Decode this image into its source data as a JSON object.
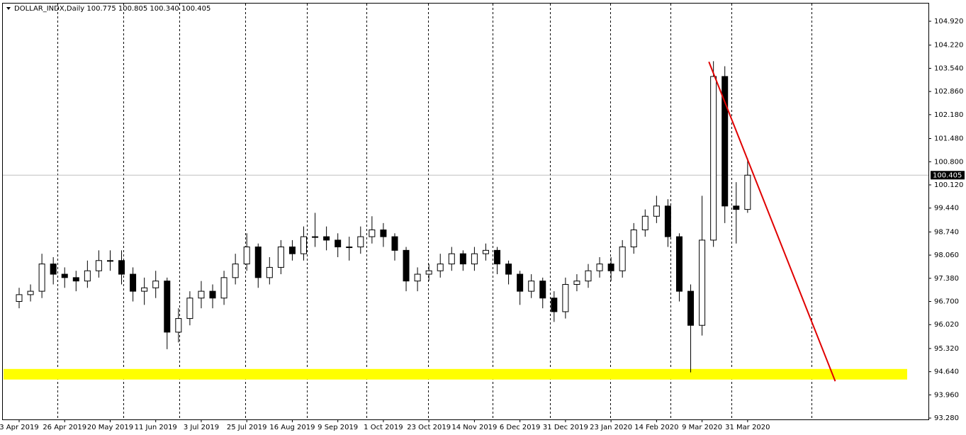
{
  "chart_data": {
    "type": "candlestick",
    "title": "DOLLAR_INDX,Daily  100.775 100.805 100.340 100.405",
    "categories": [
      "3 Apr 2019",
      null,
      null,
      null,
      "26 Apr 2019",
      null,
      null,
      null,
      "20 May 2019",
      null,
      null,
      null,
      "11 Jun 2019",
      null,
      null,
      null,
      "3 Jul 2019",
      null,
      null,
      null,
      "25 Jul 2019",
      null,
      null,
      null,
      "16 Aug 2019",
      null,
      null,
      null,
      "9 Sep 2019",
      null,
      null,
      null,
      "1 Oct 2019",
      null,
      null,
      null,
      "23 Oct 2019",
      null,
      null,
      null,
      "14 Nov 2019",
      null,
      null,
      null,
      "6 Dec 2019",
      null,
      null,
      null,
      "31 Dec 2019",
      null,
      null,
      null,
      "23 Jan 2020",
      null,
      null,
      null,
      "14 Feb 2020",
      null,
      null,
      null,
      "9 Mar 2020",
      null,
      null,
      null,
      "31 Mar 2020"
    ],
    "open": [
      96.7,
      96.9,
      97.0,
      97.8,
      97.5,
      97.4,
      97.3,
      97.6,
      97.9,
      97.9,
      97.5,
      97.0,
      97.1,
      97.3,
      95.8,
      96.2,
      96.8,
      97.0,
      96.8,
      97.4,
      97.8,
      98.3,
      97.4,
      97.7,
      98.3,
      98.1,
      98.6,
      98.6,
      98.5,
      98.3,
      98.3,
      98.6,
      98.8,
      98.6,
      98.2,
      97.3,
      97.5,
      97.6,
      97.8,
      98.1,
      97.8,
      98.1,
      98.2,
      97.8,
      97.5,
      97.0,
      97.3,
      96.8,
      96.4,
      97.2,
      97.3,
      97.6,
      97.8,
      97.6,
      98.3,
      98.8,
      99.2,
      99.5,
      98.6,
      97.0,
      96.0,
      98.5,
      103.3,
      99.5,
      99.4
    ],
    "high": [
      97.1,
      97.2,
      98.1,
      98.0,
      97.7,
      97.6,
      97.9,
      98.2,
      98.2,
      98.2,
      97.7,
      97.4,
      97.6,
      97.4,
      96.5,
      97.0,
      97.3,
      97.2,
      97.6,
      98.1,
      98.7,
      98.4,
      98.0,
      98.5,
      98.5,
      98.9,
      99.3,
      98.9,
      98.7,
      98.6,
      98.9,
      99.2,
      99.0,
      98.7,
      98.3,
      97.7,
      97.8,
      98.1,
      98.3,
      98.2,
      98.3,
      98.4,
      98.3,
      97.9,
      97.6,
      97.5,
      97.4,
      97.0,
      97.4,
      97.5,
      97.8,
      98.0,
      98.0,
      98.5,
      99.0,
      99.4,
      99.8,
      99.7,
      98.7,
      97.2,
      99.8,
      103.75,
      103.6,
      100.2,
      100.9
    ],
    "low": [
      96.5,
      96.7,
      96.8,
      97.2,
      97.1,
      97.0,
      97.1,
      97.4,
      97.6,
      97.2,
      96.7,
      96.6,
      96.8,
      95.3,
      95.5,
      96.0,
      96.5,
      96.5,
      96.6,
      97.2,
      97.6,
      97.1,
      97.2,
      97.5,
      97.9,
      97.9,
      98.3,
      98.2,
      98.0,
      97.9,
      98.1,
      98.4,
      98.3,
      97.9,
      97.0,
      97.0,
      97.3,
      97.4,
      97.6,
      97.6,
      97.6,
      97.9,
      97.5,
      97.2,
      96.6,
      96.8,
      96.5,
      96.1,
      96.2,
      97.0,
      97.1,
      97.4,
      97.3,
      97.4,
      98.1,
      98.6,
      99.0,
      98.3,
      96.7,
      94.62,
      95.7,
      98.3,
      99.0,
      98.4,
      99.3
    ],
    "close": [
      96.9,
      97.0,
      97.8,
      97.5,
      97.4,
      97.3,
      97.6,
      97.9,
      97.9,
      97.5,
      97.0,
      97.1,
      97.3,
      95.8,
      96.2,
      96.8,
      97.0,
      96.8,
      97.4,
      97.8,
      98.3,
      97.4,
      97.7,
      98.3,
      98.1,
      98.6,
      98.6,
      98.5,
      98.3,
      98.3,
      98.6,
      98.8,
      98.6,
      98.2,
      97.3,
      97.5,
      97.6,
      97.8,
      98.1,
      97.8,
      98.1,
      98.2,
      97.8,
      97.5,
      97.0,
      97.3,
      96.8,
      96.4,
      97.2,
      97.3,
      97.6,
      97.8,
      97.6,
      98.3,
      98.8,
      99.2,
      99.5,
      98.6,
      97.0,
      96.0,
      98.5,
      103.3,
      99.5,
      99.4,
      100.405
    ],
    "color": "#000000",
    "ylim": [
      93.24,
      105.44
    ],
    "yticks": [
      {
        "value": 93.28,
        "label": "93.280"
      },
      {
        "value": 93.96,
        "label": "93.960"
      },
      {
        "value": 94.64,
        "label": "94.640"
      },
      {
        "value": 95.32,
        "label": "95.320"
      },
      {
        "value": 96.02,
        "label": "96.020"
      },
      {
        "value": 96.7,
        "label": "96.700"
      },
      {
        "value": 97.38,
        "label": "97.380"
      },
      {
        "value": 98.06,
        "label": "98.060"
      },
      {
        "value": 98.74,
        "label": "98.740"
      },
      {
        "value": 99.44,
        "label": "99.440"
      },
      {
        "value": 100.12,
        "label": "100.120"
      },
      {
        "value": 100.8,
        "label": "100.800"
      },
      {
        "value": 101.48,
        "label": "101.480"
      },
      {
        "value": 102.18,
        "label": "102.180"
      },
      {
        "value": 102.86,
        "label": "102.860"
      },
      {
        "value": 103.54,
        "label": "103.540"
      },
      {
        "value": 104.22,
        "label": "104.220"
      },
      {
        "value": 104.92,
        "label": "104.920"
      }
    ],
    "last_price": 100.405,
    "band": {
      "y": [
        94.41,
        94.72
      ],
      "color": "#ffff00"
    },
    "trendline": {
      "x": [
        60.6,
        71.7
      ],
      "y": [
        103.73,
        94.36
      ],
      "color": "#e00000"
    }
  }
}
